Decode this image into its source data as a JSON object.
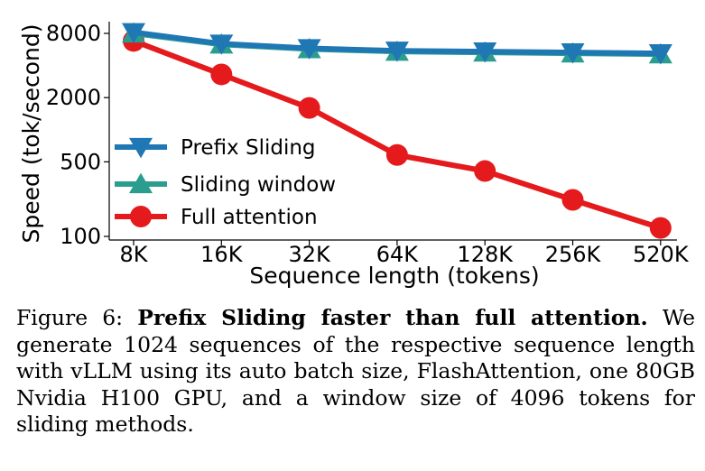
{
  "chart_data": {
    "type": "line",
    "categories": [
      "8K",
      "16K",
      "32K",
      "64K",
      "128K",
      "256K",
      "520K"
    ],
    "xlabel": "Sequence length (tokens)",
    "ylabel": "Speed (tok/second)",
    "yscale": "log",
    "yticks": [
      8000,
      2000,
      500,
      100
    ],
    "ytick_labels": [
      "8000",
      "2000",
      "500",
      "100"
    ],
    "ylim": [
      100,
      10000
    ],
    "grid": false,
    "legend_position": "center-left",
    "series": [
      {
        "name": "Prefix Sliding",
        "color": "#1f77b4",
        "marker": "triangle-down",
        "values": [
          8200,
          6400,
          5800,
          5500,
          5400,
          5300,
          5200
        ]
      },
      {
        "name": "Sliding window",
        "color": "#2a9d8f",
        "marker": "triangle-up",
        "values": [
          8000,
          6300,
          5700,
          5400,
          5300,
          5200,
          5100
        ]
      },
      {
        "name": "Full attention",
        "color": "#e41a1c",
        "marker": "circle",
        "values": [
          6800,
          3300,
          1600,
          580,
          410,
          220,
          120
        ]
      }
    ]
  },
  "caption": {
    "label": "Figure 6:",
    "title": "Prefix Sliding faster than full attention.",
    "body": "We generate 1024 sequences of the respective sequence length with vLLM using its auto batch size, FlashAttention, one 80GB Nvidia H100 GPU, and a window size of 4096 tokens for sliding methods."
  }
}
